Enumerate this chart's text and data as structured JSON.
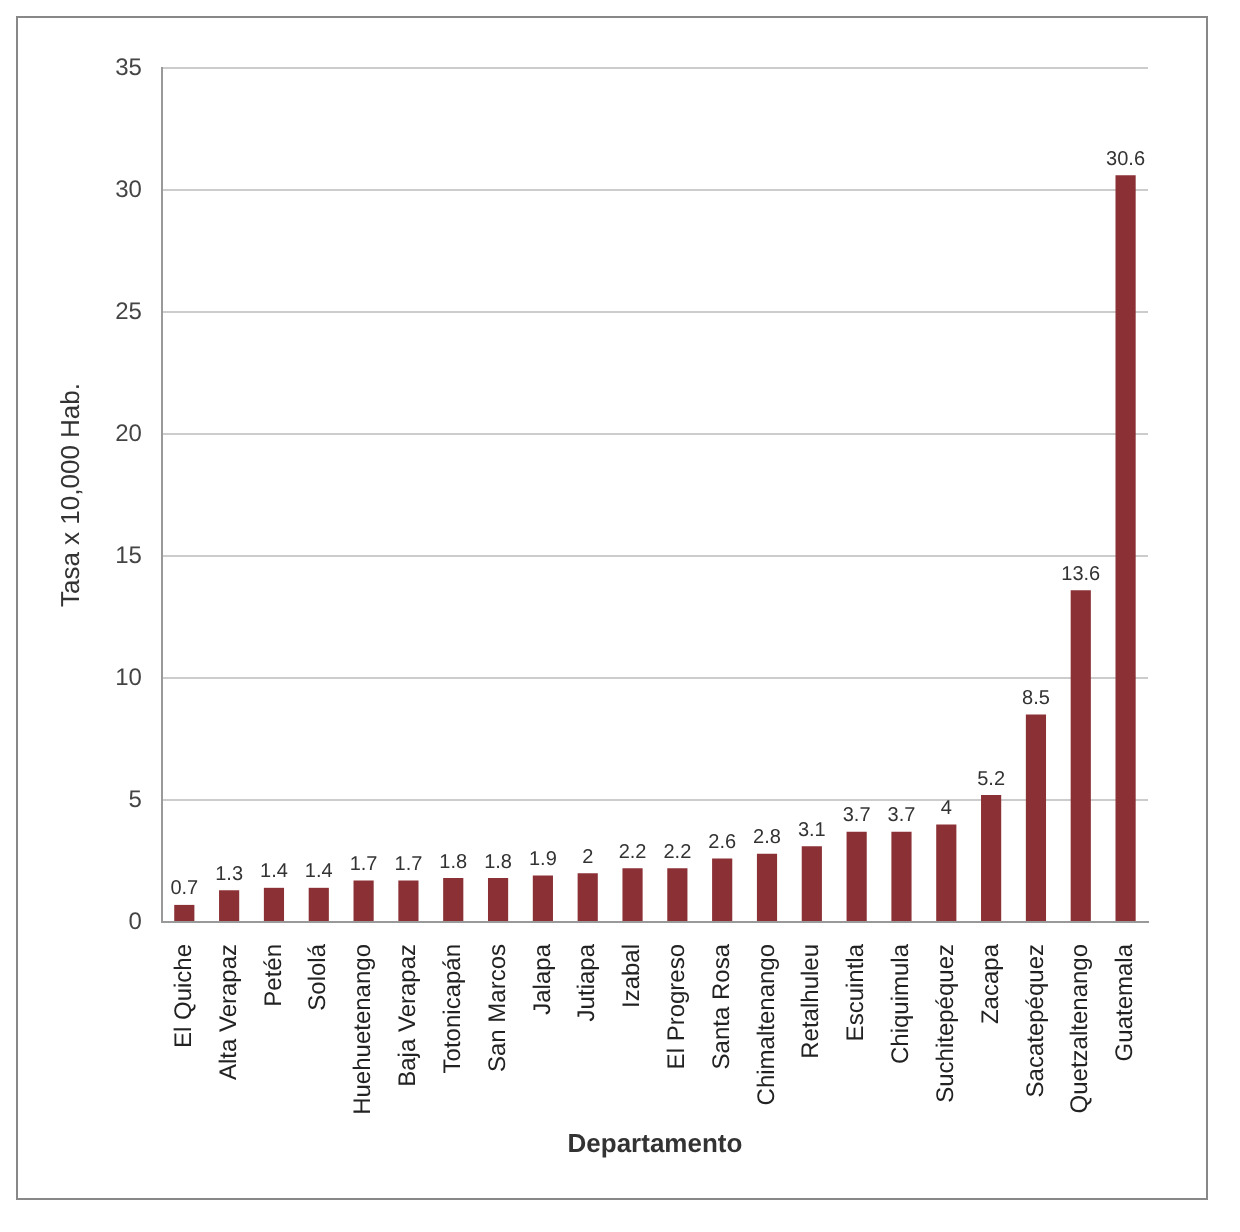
{
  "chart_data": {
    "type": "bar",
    "xlabel": "Departamento",
    "ylabel": "Tasa x 10,000 Hab.",
    "categories": [
      "El Quiche",
      "Alta Verapaz",
      "Petén",
      "Sololá",
      "Huehuetenango",
      "Baja Verapaz",
      "Totonicapán",
      "San Marcos",
      "Jalapa",
      "Jutiapa",
      "Izabal",
      "El Progreso",
      "Santa Rosa",
      "Chimaltenango",
      "Retalhuleu",
      "Escuintla",
      "Chiquimula",
      "Suchitepéquez",
      "Zacapa",
      "Sacatepéquez",
      "Quetzaltenango",
      "Guatemala"
    ],
    "values": [
      0.7,
      1.3,
      1.4,
      1.4,
      1.7,
      1.7,
      1.8,
      1.8,
      1.9,
      2,
      2.2,
      2.2,
      2.6,
      2.8,
      3.1,
      3.7,
      3.7,
      4,
      5.2,
      8.5,
      13.6,
      30.6
    ],
    "color": "#8b3034",
    "ylim": [
      0,
      35
    ],
    "yticks": [
      0,
      5,
      10,
      15,
      20,
      25,
      30,
      35
    ],
    "grid": "y",
    "data_labels": true,
    "legend": false
  }
}
